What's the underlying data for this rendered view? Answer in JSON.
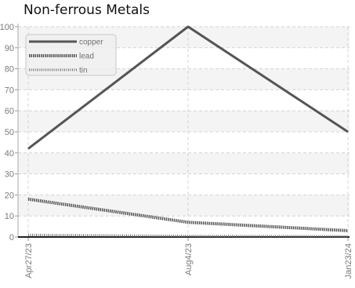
{
  "chart_data": {
    "type": "line",
    "title": "Non-ferrous Metals",
    "xlabel": "",
    "ylabel": "",
    "categories": [
      "Apr27/23",
      "Aug4/23",
      "Jan23/24"
    ],
    "series": [
      {
        "name": "copper",
        "values": [
          42,
          100,
          50
        ],
        "color": "#555555",
        "style": "solid"
      },
      {
        "name": "lead",
        "values": [
          18,
          7,
          3
        ],
        "color": "#555555",
        "style": "dense-dotted"
      },
      {
        "name": "tin",
        "values": [
          1,
          0.5,
          0.3
        ],
        "color": "#777777",
        "style": "fine-dotted"
      }
    ],
    "ylim": [
      0,
      100
    ],
    "yticks": [
      "0",
      "10",
      "20",
      "30",
      "40",
      "50",
      "60",
      "70",
      "80",
      "90",
      "100"
    ],
    "grid": true,
    "legend_position": "top-left"
  }
}
